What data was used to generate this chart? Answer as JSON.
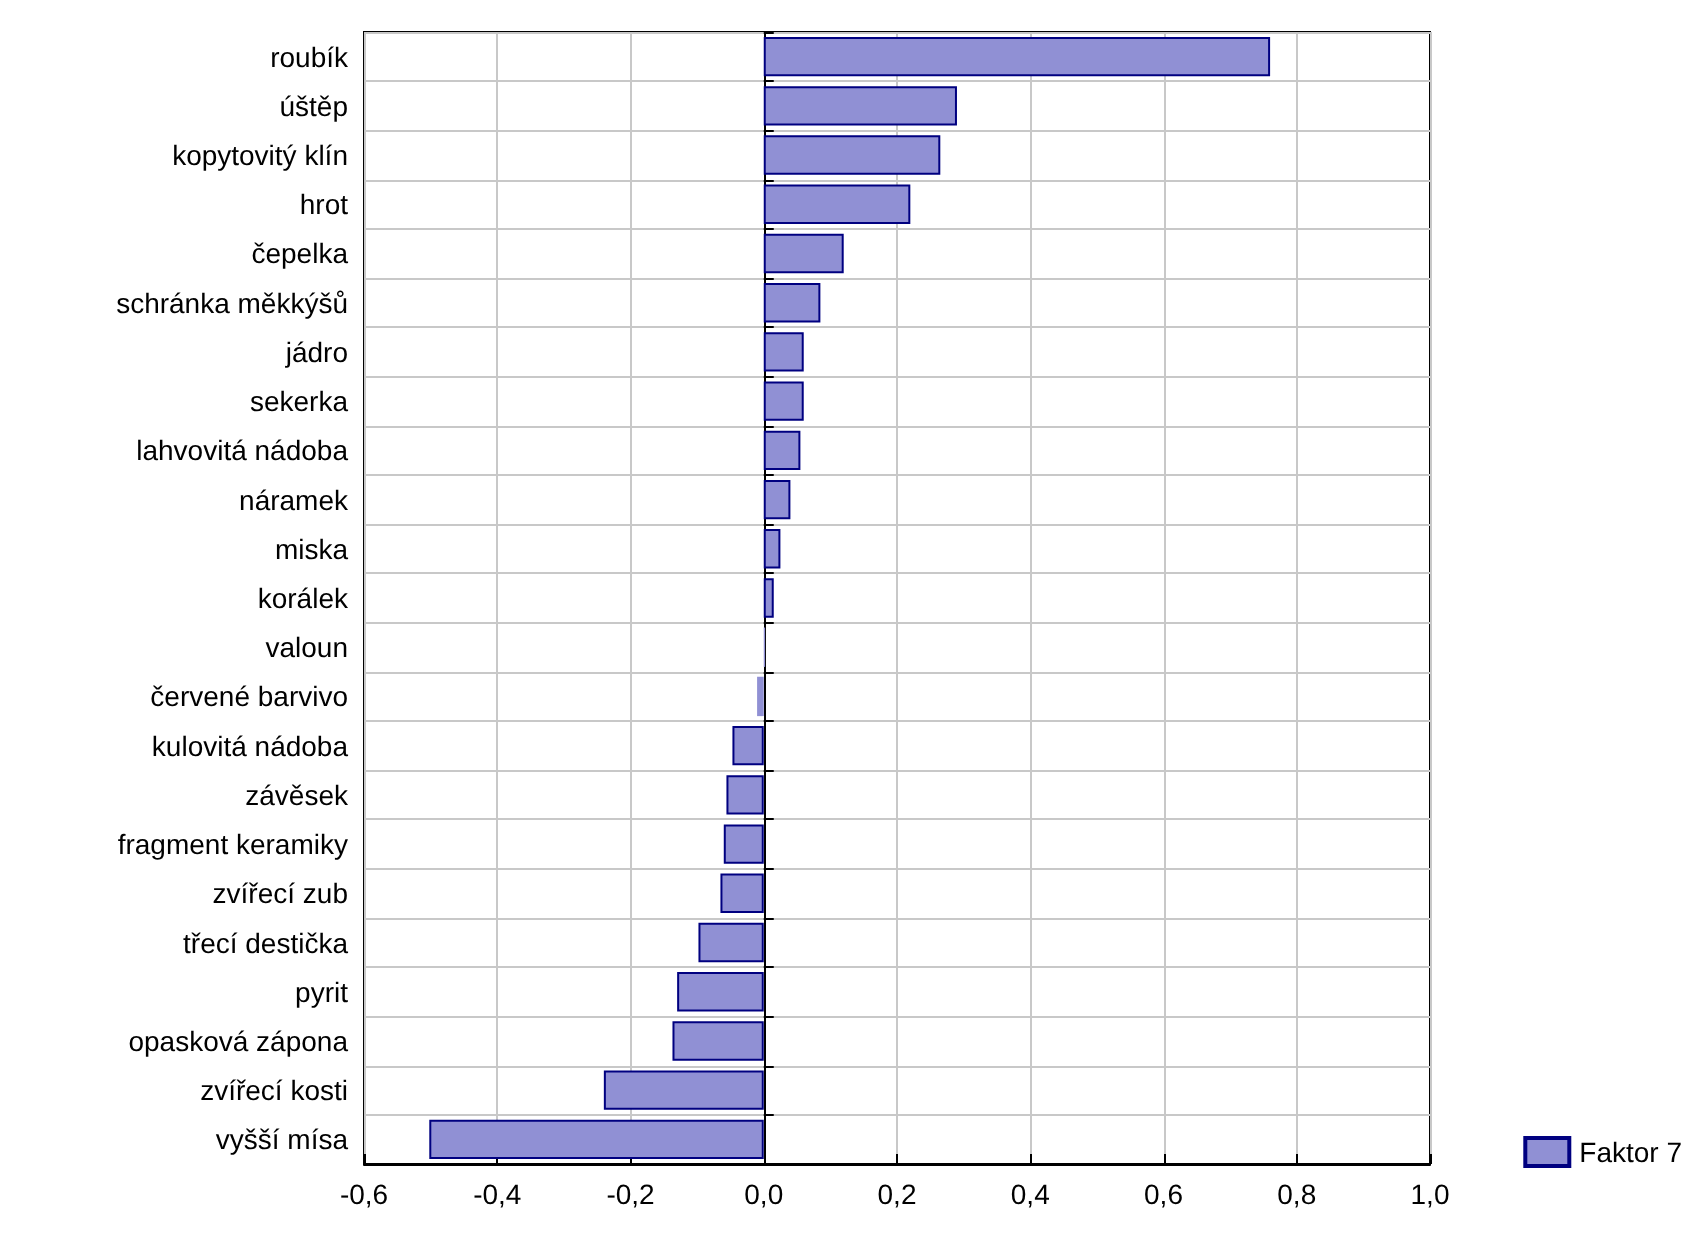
{
  "chart_data": {
    "type": "bar",
    "orientation": "horizontal",
    "categories": [
      "roubík",
      "úštěp",
      "kopytovitý klín",
      "hrot",
      "čepelka",
      "schránka měkkýšů",
      "jádro",
      "sekerka",
      "lahvovitá nádoba",
      "náramek",
      "miska",
      "korálek",
      "valoun",
      "červené barvivo",
      "kulovitá nádoba",
      "závěsek",
      "fragment keramiky",
      "zvířecí zub",
      "třecí destička",
      "pyrit",
      "opasková zápona",
      "zvířecí kosti",
      "vyšší mísa"
    ],
    "series": [
      {
        "name": "Faktor 7",
        "color": "#9090d4",
        "values": [
          0.76,
          0.29,
          0.265,
          0.22,
          0.12,
          0.085,
          0.06,
          0.06,
          0.055,
          0.04,
          0.025,
          0.015,
          0.002,
          -0.01,
          -0.047,
          -0.056,
          -0.06,
          -0.065,
          -0.098,
          -0.13,
          -0.137,
          -0.24,
          -0.502
        ]
      }
    ],
    "xlim": [
      -0.6,
      1.0
    ],
    "xticks": [
      {
        "value": -0.6,
        "label": "-0,6"
      },
      {
        "value": -0.4,
        "label": "-0,4"
      },
      {
        "value": -0.2,
        "label": "-0,2"
      },
      {
        "value": 0,
        "label": "0,0"
      },
      {
        "value": 0.2,
        "label": "0,2"
      },
      {
        "value": 0.4,
        "label": "0,4"
      },
      {
        "value": 0.6,
        "label": "0,6"
      },
      {
        "value": 0.8,
        "label": "0,8"
      },
      {
        "value": 1.0,
        "label": "1,0"
      }
    ],
    "grid": true,
    "legend": "bottom right"
  }
}
